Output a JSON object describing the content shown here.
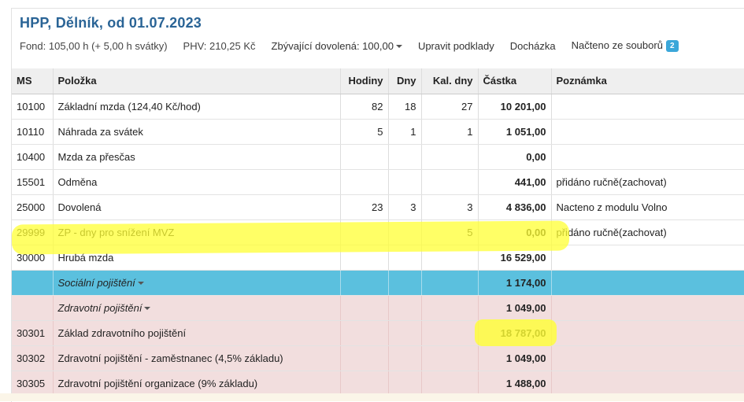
{
  "header": {
    "title": "HPP, Dělník, od 01.07.2023",
    "fond": "Fond: 105,00 h (+ 5,00 h svátky)",
    "phv": "PHV: 210,25 Kč",
    "vacation": "Zbývající dovolená: 100,00",
    "edit_link": "Upravit podklady",
    "attendance_link": "Docházka",
    "loaded_link": "Načteno ze souborů",
    "loaded_count": "2"
  },
  "table": {
    "columns": [
      "MS",
      "Položka",
      "Hodiny",
      "Dny",
      "Kal. dny",
      "Částka",
      "Poznámka"
    ],
    "rows": [
      {
        "ms": "10100",
        "item": "Základní mzda (124,40 Kč/hod)",
        "hours": "82",
        "days": "18",
        "cal": "27",
        "amount": "10 201,00",
        "note": ""
      },
      {
        "ms": "10110",
        "item": "Náhrada za svátek",
        "hours": "5",
        "days": "1",
        "cal": "1",
        "amount": "1 051,00",
        "note": ""
      },
      {
        "ms": "10400",
        "item": "Mzda za přesčas",
        "hours": "",
        "days": "",
        "cal": "",
        "amount": "0,00",
        "note": ""
      },
      {
        "ms": "15501",
        "item": "Odměna",
        "hours": "",
        "days": "",
        "cal": "",
        "amount": "441,00",
        "note": "přidáno ručně(zachovat)"
      },
      {
        "ms": "25000",
        "item": "Dovolená",
        "hours": "23",
        "days": "3",
        "cal": "3",
        "amount": "4 836,00",
        "note": "Nacteno z modulu Volno"
      },
      {
        "ms": "29999",
        "item": "ZP - dny pro snížení MVZ",
        "hours": "",
        "days": "",
        "cal": "5",
        "amount": "0,00",
        "note": "přidáno ručně(zachovat)"
      },
      {
        "ms": "30000",
        "item": "Hrubá mzda",
        "hours": "",
        "days": "",
        "cal": "",
        "amount": "16 529,00",
        "note": ""
      },
      {
        "ms": "",
        "item": "Sociální pojištění",
        "hours": "",
        "days": "",
        "cal": "",
        "amount": "1 174,00",
        "note": ""
      },
      {
        "ms": "",
        "item": "Zdravotní pojištění",
        "hours": "",
        "days": "",
        "cal": "",
        "amount": "1 049,00",
        "note": ""
      },
      {
        "ms": "30301",
        "item": "Základ zdravotního pojištění",
        "hours": "",
        "days": "",
        "cal": "",
        "amount": "18 787,00",
        "note": ""
      },
      {
        "ms": "30302",
        "item": "Zdravotní pojištění - zaměstnanec (4,5% základu)",
        "hours": "",
        "days": "",
        "cal": "",
        "amount": "1 049,00",
        "note": ""
      },
      {
        "ms": "30305",
        "item": "Zdravotní pojištění organizace (9% základu)",
        "hours": "",
        "days": "",
        "cal": "",
        "amount": "1 488,00",
        "note": ""
      }
    ]
  },
  "colors": {
    "title": "#2a6496",
    "section_social": "#5bc0de",
    "section_health": "#f2dede",
    "highlight": "#ffff33",
    "badge": "#3ba7d9"
  }
}
